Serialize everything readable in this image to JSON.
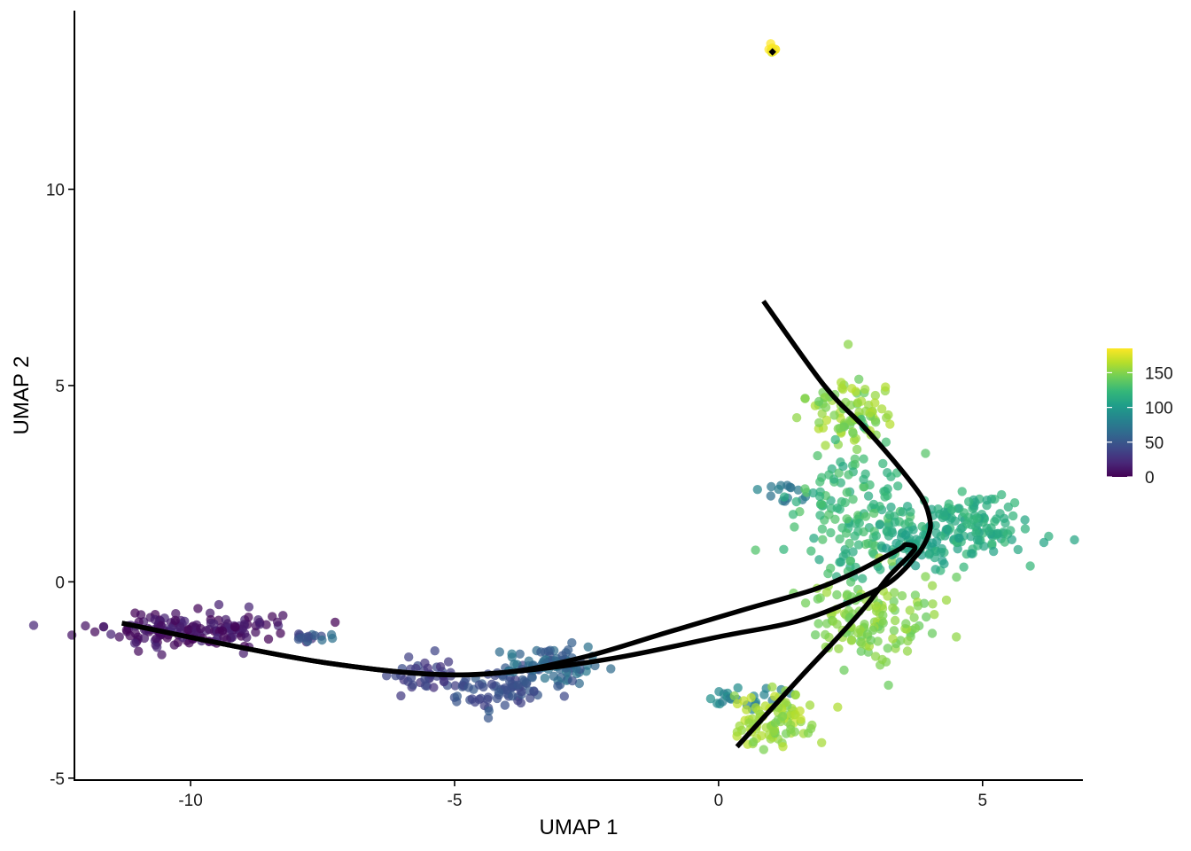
{
  "chart_data": {
    "type": "scatter",
    "xlabel": "UMAP 1",
    "ylabel": "UMAP 2",
    "xlim": [
      -12.2,
      6.9
    ],
    "ylim": [
      -5.05,
      14.55
    ],
    "xticks": [
      -10,
      -5,
      0,
      5
    ],
    "yticks": [
      -5,
      0,
      5,
      10
    ],
    "grid": false,
    "color_scale": {
      "name": "viridis",
      "min": 0,
      "max": 185,
      "ticks": [
        0,
        50,
        100,
        150
      ],
      "stops": [
        "#440154",
        "#482878",
        "#3e4989",
        "#31688e",
        "#26828e",
        "#1f9e89",
        "#35b779",
        "#6ece58",
        "#b5de2b",
        "#fde725"
      ]
    },
    "legend_position": "right",
    "clusters": [
      {
        "cx": -10.0,
        "cy": -1.2,
        "sx": 0.85,
        "sy": 0.22,
        "n": 170,
        "c0": 0,
        "c1": 22
      },
      {
        "cx": -7.65,
        "cy": -1.42,
        "sx": 0.22,
        "sy": 0.06,
        "n": 16,
        "c0": 25,
        "c1": 70
      },
      {
        "cx": -5.5,
        "cy": -2.4,
        "sx": 0.35,
        "sy": 0.22,
        "n": 42,
        "c0": 25,
        "c1": 45
      },
      {
        "cx": -4.1,
        "cy": -2.75,
        "sx": 0.45,
        "sy": 0.3,
        "n": 70,
        "c0": 35,
        "c1": 55
      },
      {
        "cx": -3.1,
        "cy": -2.1,
        "sx": 0.45,
        "sy": 0.3,
        "n": 85,
        "c0": 45,
        "c1": 75
      },
      {
        "cx": 1.25,
        "cy": 2.3,
        "sx": 0.25,
        "sy": 0.1,
        "n": 14,
        "c0": 65,
        "c1": 85
      },
      {
        "cx": 0.3,
        "cy": -2.9,
        "sx": 0.35,
        "sy": 0.15,
        "n": 22,
        "c0": 75,
        "c1": 95
      },
      {
        "cx": 1.1,
        "cy": -3.55,
        "sx": 0.4,
        "sy": 0.35,
        "n": 90,
        "c0": 145,
        "c1": 170
      },
      {
        "cx": 2.55,
        "cy": 4.3,
        "sx": 0.4,
        "sy": 0.45,
        "n": 90,
        "c0": 140,
        "c1": 165
      },
      {
        "cx": 2.5,
        "cy": 1.6,
        "sx": 0.55,
        "sy": 0.9,
        "n": 140,
        "c0": 110,
        "c1": 135
      },
      {
        "cx": 2.9,
        "cy": -1.0,
        "sx": 0.55,
        "sy": 0.6,
        "n": 130,
        "c0": 140,
        "c1": 160
      },
      {
        "cx": 4.7,
        "cy": 1.4,
        "sx": 0.7,
        "sy": 0.45,
        "n": 150,
        "c0": 105,
        "c1": 125
      },
      {
        "cx": 3.7,
        "cy": 1.0,
        "sx": 0.4,
        "sy": 0.3,
        "n": 40,
        "c0": 100,
        "c1": 115
      },
      {
        "cx": 1.0,
        "cy": 13.55,
        "sx": 0.04,
        "sy": 0.05,
        "n": 12,
        "c0": 175,
        "c1": 185
      }
    ],
    "trajectories": [
      {
        "name": "",
        "points": [
          [
            -11.3,
            -1.05
          ],
          [
            -9.5,
            -1.55
          ],
          [
            -7.5,
            -2.05
          ],
          [
            -5.5,
            -2.35
          ],
          [
            -4.0,
            -2.3
          ],
          [
            -2.0,
            -1.95
          ],
          [
            0.0,
            -1.4
          ],
          [
            1.5,
            -1.0
          ],
          [
            2.6,
            -0.45
          ],
          [
            3.2,
            -0.05
          ],
          [
            3.52,
            0.32
          ],
          [
            3.7,
            0.6
          ],
          [
            3.85,
            0.85
          ],
          [
            3.99,
            1.25
          ],
          [
            4.0,
            1.6
          ],
          [
            3.85,
            2.15
          ],
          [
            3.4,
            2.95
          ],
          [
            2.75,
            3.95
          ],
          [
            2.0,
            5.0
          ],
          [
            0.85,
            7.15
          ]
        ]
      },
      {
        "name": "",
        "points": [
          [
            -11.3,
            -1.05
          ],
          [
            -9.5,
            -1.55
          ],
          [
            -7.5,
            -2.05
          ],
          [
            -5.5,
            -2.35
          ],
          [
            -4.0,
            -2.3
          ],
          [
            -2.5,
            -1.9
          ],
          [
            -1.0,
            -1.3
          ],
          [
            0.5,
            -0.7
          ],
          [
            1.8,
            -0.2
          ],
          [
            2.6,
            0.25
          ],
          [
            3.1,
            0.6
          ],
          [
            3.45,
            0.85
          ],
          [
            3.55,
            0.95
          ],
          [
            3.72,
            0.88
          ],
          [
            3.6,
            0.65
          ],
          [
            3.2,
            0.1
          ],
          [
            2.8,
            -0.6
          ],
          [
            2.2,
            -1.5
          ],
          [
            1.5,
            -2.5
          ],
          [
            0.35,
            -4.2
          ]
        ]
      }
    ],
    "endpoint_marker": {
      "x": 1.02,
      "y": 13.5
    }
  }
}
